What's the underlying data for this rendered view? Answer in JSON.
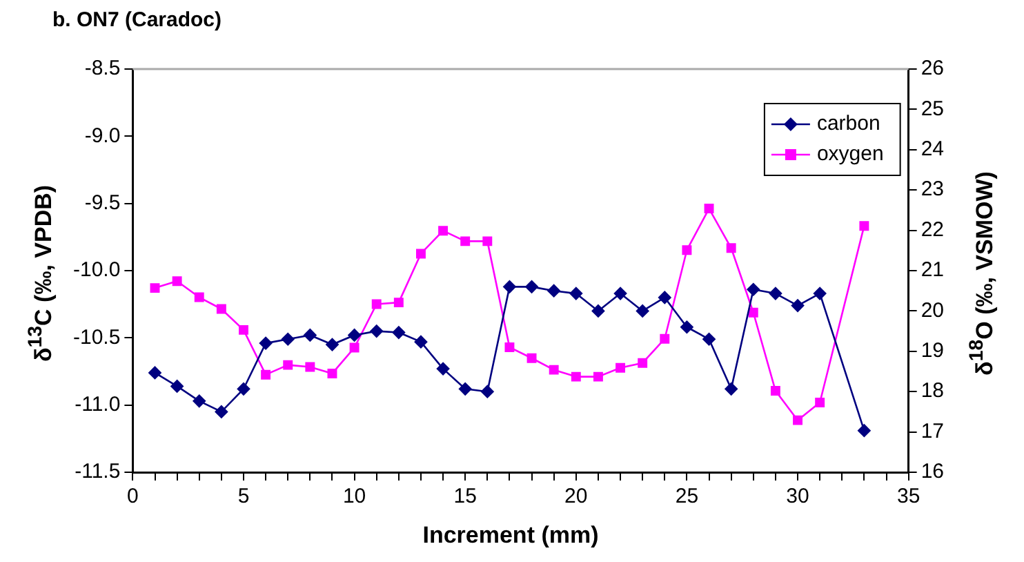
{
  "chart_data": {
    "type": "line",
    "title": "b.  ON7 (Caradoc)",
    "xlabel": "Increment (mm)",
    "ylabel": "δ$^{13}$C (‰, VPDB)",
    "y2label": "δ$^{18}$O (‰, VSMOW)",
    "x": [
      1,
      2,
      3,
      4,
      5,
      6,
      7,
      8,
      9,
      10,
      11,
      12,
      13,
      14,
      15,
      16,
      17,
      18,
      19,
      20,
      21,
      22,
      23,
      24,
      25,
      26,
      27,
      28,
      29,
      30,
      31,
      33
    ],
    "series": [
      {
        "name": "carbon",
        "color": "#000080",
        "marker": "diamond",
        "values": [
          -10.76,
          -10.86,
          -10.97,
          -11.05,
          -10.88,
          -10.54,
          -10.51,
          -10.48,
          -10.55,
          -10.48,
          -10.45,
          -10.46,
          -10.53,
          -10.73,
          -10.88,
          -10.9,
          -10.12,
          -10.12,
          -10.15,
          -10.17,
          -10.3,
          -10.17,
          -10.3,
          -10.2,
          -10.42,
          -10.51,
          -10.88,
          -10.14,
          -10.17,
          -10.26,
          -10.17,
          -11.19
        ]
      },
      {
        "name": "oxygen",
        "color": "#ff00ff",
        "marker": "square",
        "axis": "y2",
        "values": [
          20.57,
          20.74,
          20.34,
          20.05,
          19.53,
          18.42,
          18.66,
          18.61,
          18.45,
          19.09,
          20.17,
          20.21,
          21.42,
          21.99,
          21.73,
          21.73,
          19.1,
          18.83,
          18.54,
          18.37,
          18.37,
          18.59,
          18.71,
          19.31,
          21.51,
          22.54,
          21.56,
          19.96,
          18.02,
          17.29,
          17.73,
          22.11
        ]
      }
    ],
    "xlim": [
      0,
      35
    ],
    "xticks": [
      0,
      {
        "value": 1,
        "label": null
      },
      {
        "value": 2,
        "label": null
      },
      {
        "value": 3,
        "label": null
      },
      {
        "value": 4,
        "label": null
      },
      5,
      {
        "value": 6,
        "label": null
      },
      {
        "value": 7,
        "label": null
      },
      {
        "value": 8,
        "label": null
      },
      {
        "value": 9,
        "label": null
      },
      10,
      {
        "value": 11,
        "label": null
      },
      {
        "value": 12,
        "label": null
      },
      {
        "value": 13,
        "label": null
      },
      {
        "value": 14,
        "label": null
      },
      15,
      {
        "value": 16,
        "label": null
      },
      {
        "value": 17,
        "label": null
      },
      {
        "value": 18,
        "label": null
      },
      {
        "value": 19,
        "label": null
      },
      20,
      {
        "value": 21,
        "label": null
      },
      {
        "value": 22,
        "label": null
      },
      {
        "value": 23,
        "label": null
      },
      {
        "value": 24,
        "label": null
      },
      25,
      {
        "value": 26,
        "label": null
      },
      {
        "value": 27,
        "label": null
      },
      {
        "value": 28,
        "label": null
      },
      {
        "value": 29,
        "label": null
      },
      30,
      {
        "value": 31,
        "label": null
      },
      {
        "value": 32,
        "label": null
      },
      {
        "value": 33,
        "label": null
      },
      {
        "value": 34,
        "label": null
      },
      35
    ],
    "ylim": [
      -11.5,
      -8.5
    ],
    "yticks": [
      -11.5,
      {
        "value": -11,
        "label": "-11.0"
      },
      -10.5,
      {
        "value": -10,
        "label": "-10.0"
      },
      -9.5,
      {
        "value": -9,
        "label": "-9.0"
      },
      -8.5
    ],
    "y2lim": [
      16,
      26
    ],
    "y2ticks": [
      16,
      17,
      18,
      19,
      20,
      21,
      22,
      23,
      24,
      25,
      26
    ],
    "grid": false,
    "legend": "top right",
    "line_style": "solid"
  }
}
